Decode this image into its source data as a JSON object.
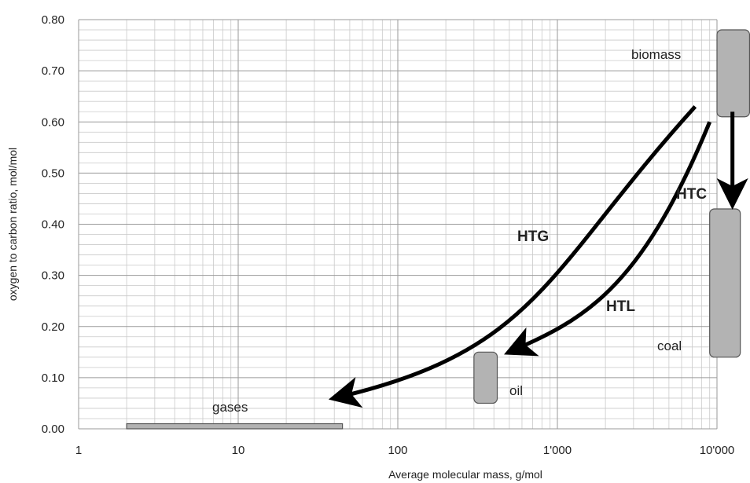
{
  "chart_data": {
    "type": "scatter",
    "title": "",
    "xlabel": "Average molecular mass, g/mol",
    "ylabel": "oxygen to carbon ratio, mol/mol",
    "xscale": "log",
    "xlim": [
      1,
      10000
    ],
    "ylim": [
      0,
      0.8
    ],
    "grid": "on (major and minor)",
    "x_ticks": [
      "1",
      "10",
      "100",
      "1'000",
      "10'000"
    ],
    "y_ticks": [
      "0.00",
      "0.10",
      "0.20",
      "0.30",
      "0.40",
      "0.50",
      "0.60",
      "0.70",
      "0.80"
    ],
    "regions": [
      {
        "name": "gases",
        "x": [
          2,
          45
        ],
        "y": [
          0,
          0.01
        ]
      },
      {
        "name": "oil",
        "x": [
          300,
          420
        ],
        "y": [
          0.05,
          0.15
        ]
      },
      {
        "name": "coal",
        "x": [
          9000,
          14000
        ],
        "y": [
          0.14,
          0.43
        ]
      },
      {
        "name": "biomass",
        "x": [
          10000,
          16000
        ],
        "y": [
          0.61,
          0.78
        ]
      }
    ],
    "processes": [
      {
        "name": "HTG",
        "from": [
          7300,
          0.63
        ],
        "to": [
          40,
          0.06
        ]
      },
      {
        "name": "HTL",
        "from": [
          9000,
          0.6
        ],
        "to": [
          500,
          0.15
        ]
      },
      {
        "name": "HTC",
        "from": [
          12500,
          0.62
        ],
        "to": [
          12500,
          0.44
        ]
      }
    ]
  }
}
